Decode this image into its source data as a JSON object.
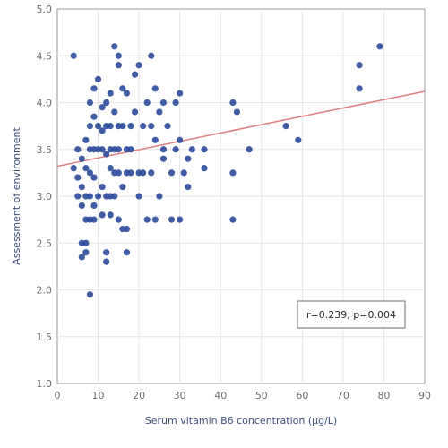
{
  "chart_data": {
    "type": "scatter",
    "title": "",
    "xlabel": "Serum vitamin B6 concentration (μg/L)",
    "ylabel": "Assessment of environment",
    "xlim": [
      0,
      90
    ],
    "ylim": [
      1.0,
      5.0
    ],
    "x_ticks": [
      "0",
      "10",
      "20",
      "30",
      "40",
      "50",
      "60",
      "70",
      "80",
      "90"
    ],
    "y_ticks": [
      "1.0",
      "1.5",
      "2.0",
      "2.5",
      "3.0",
      "3.5",
      "4.0",
      "4.5",
      "5.0"
    ],
    "grid": true,
    "annotation": "r=0.239, p=0.004",
    "colors": {
      "points": "#2b4a9b",
      "trend": "#e07f7f",
      "grid": "#e6e6e6",
      "axis": "#9a9a9a"
    },
    "trendline": {
      "x": [
        0,
        90
      ],
      "y": [
        3.32,
        4.12
      ]
    },
    "series": [
      {
        "points": [
          [
            4,
            4.5
          ],
          [
            4,
            3.3
          ],
          [
            5,
            3.5
          ],
          [
            5,
            3.2
          ],
          [
            5,
            3.0
          ],
          [
            6,
            3.4
          ],
          [
            6,
            2.9
          ],
          [
            6,
            2.5
          ],
          [
            6,
            2.35
          ],
          [
            6,
            3.1
          ],
          [
            7,
            3.6
          ],
          [
            7,
            3.3
          ],
          [
            7,
            2.5
          ],
          [
            7,
            2.4
          ],
          [
            7,
            2.75
          ],
          [
            7,
            3.0
          ],
          [
            8,
            4.0
          ],
          [
            8,
            3.75
          ],
          [
            8,
            3.5
          ],
          [
            8,
            3.25
          ],
          [
            8,
            3.0
          ],
          [
            8,
            2.75
          ],
          [
            8,
            1.95
          ],
          [
            9,
            4.15
          ],
          [
            9,
            3.85
          ],
          [
            9,
            3.5
          ],
          [
            9,
            3.2
          ],
          [
            9,
            2.9
          ],
          [
            9,
            2.75
          ],
          [
            10,
            4.25
          ],
          [
            10,
            3.75
          ],
          [
            10,
            3.5
          ],
          [
            10,
            3.0
          ],
          [
            11,
            3.95
          ],
          [
            11,
            3.7
          ],
          [
            11,
            3.5
          ],
          [
            11,
            3.1
          ],
          [
            11,
            2.8
          ],
          [
            12,
            3.75
          ],
          [
            12,
            4.0
          ],
          [
            12,
            3.45
          ],
          [
            12,
            3.0
          ],
          [
            12,
            2.4
          ],
          [
            12,
            2.3
          ],
          [
            13,
            4.1
          ],
          [
            13,
            3.75
          ],
          [
            13,
            3.5
          ],
          [
            13,
            3.3
          ],
          [
            13,
            3.0
          ],
          [
            13,
            2.8
          ],
          [
            14,
            4.6
          ],
          [
            14,
            3.9
          ],
          [
            14,
            3.5
          ],
          [
            14,
            3.25
          ],
          [
            14,
            3.0
          ],
          [
            15,
            4.5
          ],
          [
            15,
            4.4
          ],
          [
            15,
            3.75
          ],
          [
            15,
            3.5
          ],
          [
            15,
            3.25
          ],
          [
            15,
            2.75
          ],
          [
            16,
            4.15
          ],
          [
            16,
            3.75
          ],
          [
            16,
            3.1
          ],
          [
            16,
            2.65
          ],
          [
            17,
            4.1
          ],
          [
            17,
            3.5
          ],
          [
            17,
            3.25
          ],
          [
            17,
            2.65
          ],
          [
            17,
            2.4
          ],
          [
            18,
            3.75
          ],
          [
            18,
            3.5
          ],
          [
            18,
            3.25
          ],
          [
            19,
            4.3
          ],
          [
            19,
            3.9
          ],
          [
            20,
            4.4
          ],
          [
            20,
            3.25
          ],
          [
            20,
            3.0
          ],
          [
            21,
            3.75
          ],
          [
            21,
            3.25
          ],
          [
            22,
            4.0
          ],
          [
            22,
            2.75
          ],
          [
            23,
            4.5
          ],
          [
            23,
            3.75
          ],
          [
            23,
            3.25
          ],
          [
            24,
            4.15
          ],
          [
            24,
            3.6
          ],
          [
            24,
            2.75
          ],
          [
            25,
            3.9
          ],
          [
            25,
            3.0
          ],
          [
            26,
            4.0
          ],
          [
            26,
            3.5
          ],
          [
            26,
            3.4
          ],
          [
            27,
            3.75
          ],
          [
            28,
            3.25
          ],
          [
            28,
            2.75
          ],
          [
            29,
            3.5
          ],
          [
            29,
            4.0
          ],
          [
            30,
            4.1
          ],
          [
            30,
            3.6
          ],
          [
            30,
            2.75
          ],
          [
            31,
            3.25
          ],
          [
            32,
            3.4
          ],
          [
            32,
            3.1
          ],
          [
            33,
            3.5
          ],
          [
            36,
            3.5
          ],
          [
            36,
            3.3
          ],
          [
            43,
            4.0
          ],
          [
            43,
            3.25
          ],
          [
            43,
            2.75
          ],
          [
            44,
            3.9
          ],
          [
            47,
            3.5
          ],
          [
            56,
            3.75
          ],
          [
            59,
            3.6
          ],
          [
            74,
            4.4
          ],
          [
            74,
            4.15
          ],
          [
            79,
            4.6
          ]
        ]
      }
    ]
  }
}
